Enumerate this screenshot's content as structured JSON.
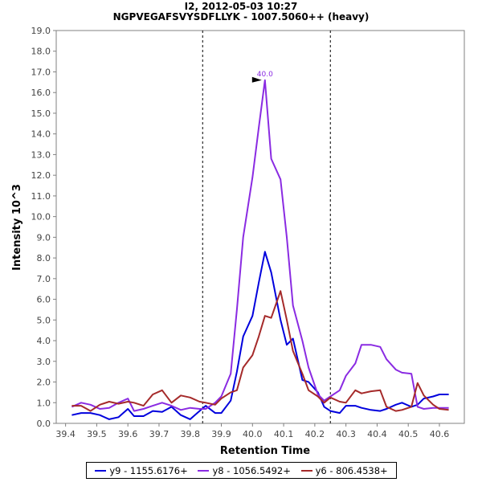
{
  "chart_data": {
    "type": "line",
    "title": "I2, 2012-05-03 10:27",
    "subtitle": "NGPVEGAFSVYSDFLLYK - 1007.5060++ (heavy)",
    "xlabel": "Retention Time",
    "ylabel": "Intensity 10^3",
    "xlim": [
      39.37,
      40.68
    ],
    "ylim": [
      0,
      19
    ],
    "x_ticks": [
      "39.4",
      "39.5",
      "39.6",
      "39.7",
      "39.8",
      "39.9",
      "40.0",
      "40.1",
      "40.2",
      "40.3",
      "40.4",
      "40.5",
      "40.6"
    ],
    "y_ticks": [
      "0.0",
      "1.0",
      "2.0",
      "3.0",
      "4.0",
      "5.0",
      "6.0",
      "7.0",
      "8.0",
      "9.0",
      "10.0",
      "11.0",
      "12.0",
      "13.0",
      "14.0",
      "15.0",
      "16.0",
      "17.0",
      "18.0",
      "19.0"
    ],
    "vertical_markers": [
      39.84,
      40.25
    ],
    "peak_annotation": {
      "label": "40.0",
      "x": 40.04,
      "y": 16.6
    },
    "legend_position": "bottom",
    "x": [
      39.42,
      39.45,
      39.48,
      39.51,
      39.54,
      39.57,
      39.6,
      39.62,
      39.65,
      39.68,
      39.71,
      39.74,
      39.77,
      39.8,
      39.83,
      39.85,
      39.88,
      39.9,
      39.93,
      39.95,
      39.97,
      40.0,
      40.02,
      40.04,
      40.06,
      40.09,
      40.11,
      40.13,
      40.16,
      40.18,
      40.21,
      40.23,
      40.25,
      40.28,
      40.3,
      40.33,
      40.35,
      40.38,
      40.41,
      40.43,
      40.46,
      40.48,
      40.51,
      40.53,
      40.55,
      40.58,
      40.6,
      40.63
    ],
    "series": [
      {
        "name": "y9 - 1155.6176+",
        "color": "#0000dd",
        "values": [
          0.4,
          0.5,
          0.5,
          0.4,
          0.2,
          0.3,
          0.7,
          0.35,
          0.35,
          0.6,
          0.55,
          0.8,
          0.4,
          0.2,
          0.6,
          0.85,
          0.5,
          0.5,
          1.1,
          2.5,
          4.2,
          5.2,
          6.8,
          8.3,
          7.3,
          5.0,
          3.8,
          4.1,
          2.1,
          2.0,
          1.5,
          0.8,
          0.6,
          0.5,
          0.85,
          0.85,
          0.75,
          0.65,
          0.6,
          0.7,
          0.9,
          1.0,
          0.8,
          0.9,
          1.2,
          1.3,
          1.4,
          1.4
        ]
      },
      {
        "name": "y8 - 1056.5492+",
        "color": "#8a2be2",
        "values": [
          0.8,
          1.0,
          0.9,
          0.7,
          0.75,
          1.0,
          1.2,
          0.6,
          0.7,
          0.85,
          1.0,
          0.85,
          0.65,
          0.75,
          0.7,
          0.7,
          1.0,
          1.3,
          2.4,
          5.5,
          9.0,
          11.9,
          14.3,
          16.6,
          12.8,
          11.8,
          9.0,
          5.7,
          4.0,
          2.7,
          1.4,
          1.1,
          1.3,
          1.6,
          2.3,
          2.9,
          3.8,
          3.8,
          3.7,
          3.1,
          2.6,
          2.45,
          2.4,
          0.8,
          0.7,
          0.75,
          0.75,
          0.75
        ]
      },
      {
        "name": "y6 - 806.4538+",
        "color": "#a52a2a",
        "values": [
          0.85,
          0.85,
          0.6,
          0.9,
          1.05,
          0.95,
          1.05,
          1.0,
          0.85,
          1.4,
          1.6,
          1.0,
          1.35,
          1.25,
          1.05,
          1.0,
          0.9,
          1.2,
          1.5,
          1.6,
          2.7,
          3.3,
          4.2,
          5.2,
          5.1,
          6.4,
          5.0,
          3.5,
          2.4,
          1.6,
          1.3,
          1.0,
          1.25,
          1.05,
          1.0,
          1.6,
          1.45,
          1.55,
          1.6,
          0.8,
          0.6,
          0.65,
          0.8,
          1.95,
          1.35,
          0.9,
          0.7,
          0.65
        ]
      }
    ]
  }
}
